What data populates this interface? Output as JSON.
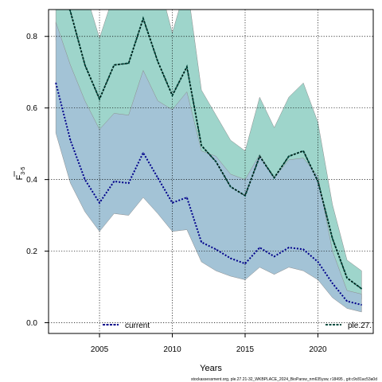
{
  "chart_data": {
    "type": "line",
    "xlabel": "Years",
    "ylabel_main": "F",
    "ylabel_sub": "3-5",
    "xlim": [
      2001.5,
      2023.8
    ],
    "ylim": [
      -0.03,
      0.875
    ],
    "xticks": [
      "2005",
      "2010",
      "2015",
      "2020"
    ],
    "yticks": [
      "0.0",
      "0.2",
      "0.4",
      "0.6",
      "0.8"
    ],
    "grid": true,
    "legend_placement": "bottom",
    "footer": "stockassessment.org, ple.27.21-32_WKBPLACE_2024_BioParsw_nm635ysw, r18495 , git:c9c81ac53a0d",
    "series": [
      {
        "name": "current",
        "color": "#00008B",
        "band_color": "#A3C3D6",
        "x": [
          2002,
          2003,
          2004,
          2005,
          2006,
          2007,
          2008,
          2009,
          2010,
          2011,
          2012,
          2013,
          2014,
          2015,
          2016,
          2017,
          2018,
          2019,
          2020,
          2021,
          2022,
          2023
        ],
        "values": [
          0.67,
          0.51,
          0.4,
          0.335,
          0.395,
          0.39,
          0.475,
          0.405,
          0.335,
          0.35,
          0.225,
          0.205,
          0.18,
          0.165,
          0.21,
          0.185,
          0.21,
          0.205,
          0.17,
          0.11,
          0.06,
          0.05
        ],
        "upper": [
          0.84,
          0.72,
          0.62,
          0.54,
          0.585,
          0.58,
          0.705,
          0.62,
          0.595,
          0.645,
          0.48,
          0.465,
          0.415,
          0.4,
          0.47,
          0.405,
          0.455,
          0.46,
          0.41,
          0.2,
          0.09,
          0.08
        ],
        "lower": [
          0.53,
          0.39,
          0.31,
          0.255,
          0.305,
          0.3,
          0.35,
          0.305,
          0.255,
          0.26,
          0.17,
          0.145,
          0.13,
          0.12,
          0.155,
          0.135,
          0.155,
          0.145,
          0.12,
          0.07,
          0.04,
          0.03
        ]
      },
      {
        "name": "ple.27.",
        "color": "#004D40",
        "band_color": "#9ED5CB",
        "x": [
          2002,
          2003,
          2004,
          2005,
          2006,
          2007,
          2008,
          2009,
          2010,
          2011,
          2012,
          2013,
          2014,
          2015,
          2016,
          2017,
          2018,
          2019,
          2020,
          2021,
          2022,
          2023
        ],
        "values": [
          0.98,
          0.87,
          0.72,
          0.625,
          0.72,
          0.725,
          0.85,
          0.73,
          0.635,
          0.715,
          0.495,
          0.45,
          0.38,
          0.355,
          0.465,
          0.405,
          0.465,
          0.48,
          0.395,
          0.235,
          0.125,
          0.095
        ],
        "upper": [
          1.25,
          1.05,
          0.93,
          0.795,
          0.92,
          0.93,
          1.08,
          0.965,
          0.81,
          0.95,
          0.65,
          0.58,
          0.51,
          0.48,
          0.63,
          0.545,
          0.63,
          0.67,
          0.56,
          0.33,
          0.175,
          0.145
        ],
        "lower": [
          0.79,
          0.69,
          0.59,
          0.495,
          0.575,
          0.575,
          0.68,
          0.58,
          0.495,
          0.56,
          0.38,
          0.345,
          0.28,
          0.25,
          0.345,
          0.295,
          0.345,
          0.345,
          0.29,
          0.165,
          0.09,
          0.065
        ]
      }
    ]
  }
}
